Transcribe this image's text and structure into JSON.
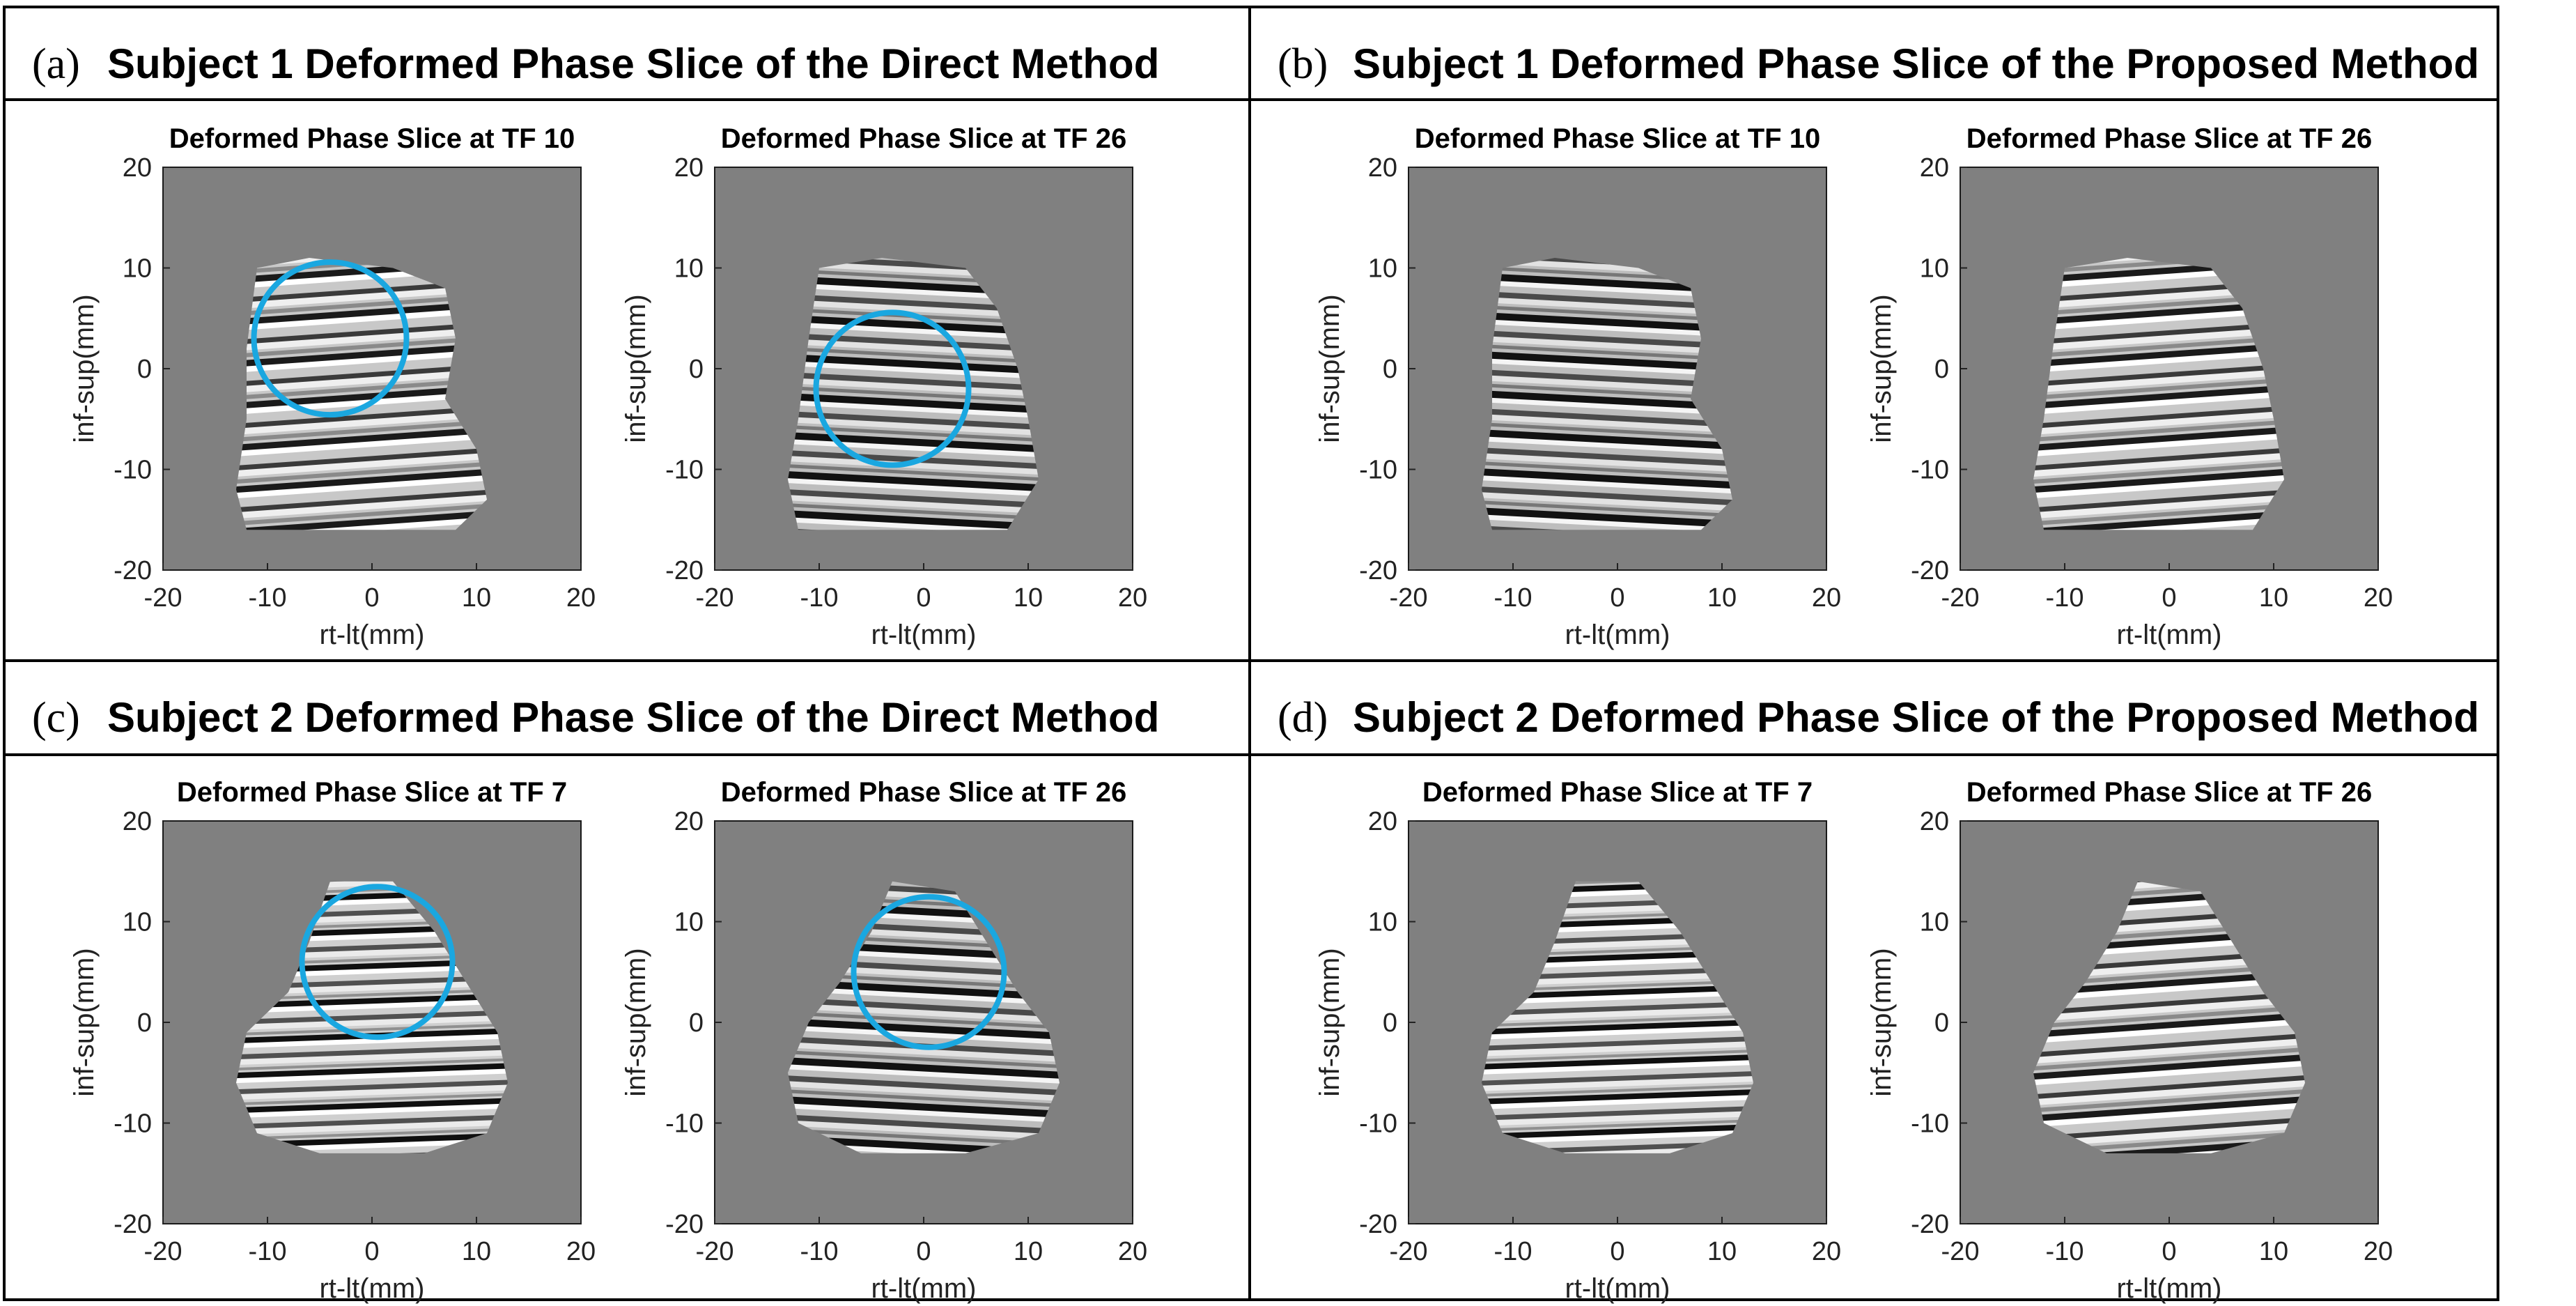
{
  "axes": {
    "xlabel": "rt-lt(mm)",
    "ylabel": "inf-sup(mm)",
    "ticks": [
      "-20",
      "-10",
      "0",
      "10",
      "20"
    ],
    "ticks_y": [
      "20",
      "10",
      "0",
      "-10",
      "-20"
    ],
    "xlim": [
      -20,
      20
    ],
    "ylim": [
      -20,
      20
    ]
  },
  "colors": {
    "background": "#808080",
    "highlight_circle": "#1aa7e0",
    "frame": "#000000"
  },
  "panels": [
    {
      "id": "a",
      "paren": "(a)",
      "title": "Subject 1 Deformed Phase Slice of the Direct Method",
      "subplots": [
        {
          "title": "Deformed Phase Slice at TF 10",
          "circle": {
            "cx": -4,
            "cy": 3,
            "r": 7.3
          }
        },
        {
          "title": "Deformed Phase Slice at TF 26",
          "circle": {
            "cx": -3,
            "cy": -2,
            "r": 7.3
          }
        }
      ]
    },
    {
      "id": "b",
      "paren": "(b)",
      "title": "Subject 1 Deformed Phase Slice of the Proposed Method",
      "subplots": [
        {
          "title": "Deformed Phase Slice at TF 10"
        },
        {
          "title": "Deformed Phase Slice at TF 26"
        }
      ]
    },
    {
      "id": "c",
      "paren": "(c)",
      "title": "Subject 2 Deformed Phase Slice of the Direct Method",
      "subplots": [
        {
          "title": "Deformed Phase Slice at TF 7",
          "circle": {
            "cx": 0.5,
            "cy": 6,
            "r": 7.2
          }
        },
        {
          "title": "Deformed Phase Slice at TF 26",
          "circle": {
            "cx": 0.5,
            "cy": 5,
            "r": 7.2
          }
        }
      ]
    },
    {
      "id": "d",
      "paren": "(d)",
      "title": "Subject 2 Deformed Phase Slice of the Proposed Method",
      "subplots": [
        {
          "title": "Deformed Phase Slice at TF 7"
        },
        {
          "title": "Deformed Phase Slice at TF 26"
        }
      ]
    }
  ]
}
